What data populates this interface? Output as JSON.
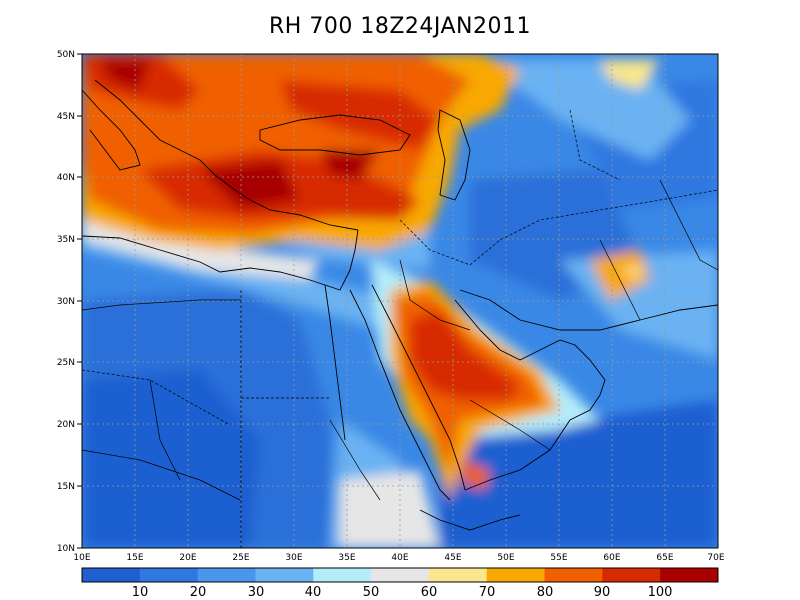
{
  "title": "RH 700 18Z24JAN2011",
  "lat_labels": [
    "50N",
    "45N",
    "40N",
    "35N",
    "30N",
    "25N",
    "20N",
    "15N",
    "10N"
  ],
  "lon_labels": [
    "10E",
    "15E",
    "20E",
    "25E",
    "30E",
    "35E",
    "40E",
    "45E",
    "50E",
    "55E",
    "60E",
    "65E",
    "70E"
  ],
  "colorbar": {
    "labels": [
      "10",
      "20",
      "30",
      "40",
      "50",
      "60",
      "70",
      "80",
      "90",
      "100"
    ],
    "colors": [
      "#1f5fd0",
      "#2e78e0",
      "#4a96ec",
      "#6ab2f2",
      "#b4ecfa",
      "#e6e6e6",
      "#fae68c",
      "#f8a800",
      "#f06000",
      "#d82a00",
      "#a80000"
    ]
  }
}
